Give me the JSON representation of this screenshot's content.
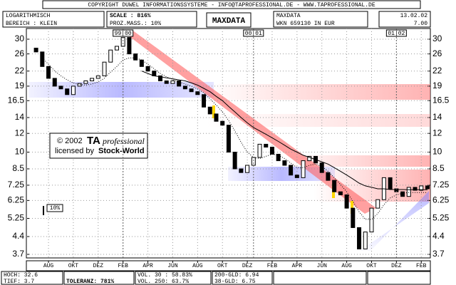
{
  "chart_data": {
    "type": "candlestick",
    "log_scale": true,
    "grid": true,
    "header": {
      "copyright": "COPYRIGHT DUWEL INFORMATIONSSYSTEME - INFO@TAPROFESSIONAL.DE - WWW.TAPROFESSIONAL.DE",
      "scale_mode": "LOGARITHMISCH",
      "range": "BEREICH : KLEIN",
      "scale": "SCALE : 816%",
      "proz": "PROZ.MASS.: 10%",
      "title": "MAXDATA",
      "name": "MAXDATA",
      "wkn": "WKN 659130   IN EUR",
      "date": "13.02.02",
      "last": "7.00"
    },
    "year_marks": [
      {
        "label": "99|00",
        "index": 14
      },
      {
        "label": "00|01",
        "index": 35
      },
      {
        "label": "01|02",
        "index": 58
      }
    ],
    "watermark": {
      "year": "© 2002",
      "brand": "TA",
      "brand_suffix": "professional",
      "licensed": "licensed by",
      "licensor": "Stock-World"
    },
    "scale_label": "10%",
    "footer": {
      "high": "HOCH: 32.6",
      "low": "TIEF: 3.7",
      "tolerance": "TOLERANZ: 781%",
      "vol30": "VOL. 30 : 58.83%",
      "vol250": "VOL. 250: 63.7%",
      "gld200": "200-GLD: 6.94",
      "gld38": "38-GLD: 6.75"
    },
    "ylim": [
      3.7,
      32.6
    ],
    "yticks": [
      30,
      26,
      22,
      19,
      16.5,
      14,
      12,
      10,
      8.5,
      7.25,
      6.25,
      5.25,
      4.4,
      3.7
    ],
    "categories": [
      null,
      null,
      "AUG",
      null,
      null,
      null,
      "OKT",
      null,
      null,
      null,
      "DEZ",
      null,
      null,
      null,
      "FEB",
      null,
      null,
      null,
      "APR",
      null,
      null,
      null,
      "JUN",
      null,
      null,
      null,
      "AUG",
      null,
      null,
      null,
      "OKT",
      null,
      null,
      null,
      "DEZ",
      null,
      null,
      null,
      "FEB",
      null,
      null,
      null,
      "APR",
      null,
      null,
      null,
      "JUN",
      null,
      null,
      null,
      "AUG",
      null,
      null,
      null,
      "OKT",
      null,
      null,
      null,
      "DEZ",
      null,
      null,
      null,
      "FEB",
      null
    ],
    "open": [
      27.5,
      26.5,
      23,
      20.5,
      19,
      18.5,
      17.5,
      19,
      19.5,
      20,
      20.5,
      21,
      24,
      27,
      28,
      30.5,
      26,
      24.5,
      23,
      22,
      21,
      20,
      19.5,
      20,
      19,
      18.5,
      18,
      17.5,
      15.5,
      14.5,
      13.5,
      13,
      10,
      8.5,
      8.2,
      8.8,
      9.5,
      10.8,
      10.5,
      9.8,
      9.2,
      8.8,
      8,
      7.8,
      9.2,
      9.6,
      9,
      8.2,
      7.6,
      6.8,
      6.6,
      5.8,
      4.8,
      3.9,
      4.6,
      5.8,
      6.3,
      7.8,
      7,
      6.8,
      6.5,
      7.1,
      6.9,
      7.2
    ],
    "close": [
      26.5,
      23,
      20.5,
      19,
      18.5,
      17.5,
      19,
      19.5,
      20,
      20.5,
      21,
      24,
      27,
      28,
      30.5,
      26,
      24.5,
      23,
      22,
      21,
      20,
      19.5,
      20,
      19,
      18.5,
      18,
      17.5,
      15.5,
      14.5,
      13.5,
      13,
      10,
      8.5,
      8.2,
      8.8,
      9.5,
      10.8,
      10.5,
      9.8,
      9.2,
      8.8,
      8,
      7.8,
      9.2,
      9.6,
      9,
      8.2,
      7.6,
      6.8,
      6.6,
      5.8,
      4.8,
      3.9,
      4.6,
      5.8,
      6.3,
      7.8,
      7,
      6.8,
      6.5,
      7.1,
      6.9,
      7.2,
      7.0
    ],
    "lines": [
      {
        "color": "#000000",
        "style": "solid",
        "values": [
          null,
          null,
          null,
          null,
          null,
          null,
          null,
          null,
          null,
          null,
          null,
          null,
          null,
          null,
          null,
          null,
          null,
          22,
          21.5,
          21,
          20.8,
          20.6,
          20.4,
          20.2,
          20,
          19.6,
          19.2,
          18.6,
          18,
          17.2,
          16.5,
          15.6,
          14.8,
          14,
          13.3,
          12.7,
          12.3,
          11.9,
          11.5,
          11.1,
          10.7,
          10.3,
          10,
          9.7,
          9.5,
          9.3,
          9.1,
          8.9,
          8.6,
          8.3,
          8.0,
          7.7,
          7.4,
          7.2,
          7.1,
          7.0,
          7.0,
          6.95,
          6.95,
          6.95,
          6.94,
          6.94,
          6.94,
          6.94
        ]
      },
      {
        "color": "#000000",
        "style": "dotted",
        "values": [
          null,
          25,
          23.5,
          22,
          21,
          20.2,
          19.6,
          19.3,
          19.2,
          19.4,
          19.8,
          20.5,
          21.8,
          23,
          24.5,
          25,
          25,
          24.5,
          23.5,
          22.5,
          21.5,
          20.8,
          20.3,
          19.8,
          19.4,
          19,
          18.5,
          17.8,
          16.8,
          15.8,
          14.8,
          13.6,
          12.3,
          11,
          10,
          9.5,
          9.4,
          9.6,
          9.8,
          9.7,
          9.4,
          9,
          8.6,
          8.6,
          8.8,
          8.9,
          8.7,
          8.3,
          7.8,
          7.3,
          6.8,
          6.2,
          5.6,
          5.2,
          5.2,
          5.5,
          6,
          6.4,
          6.6,
          6.7,
          6.75,
          6.75,
          6.75,
          6.75
        ]
      }
    ]
  }
}
